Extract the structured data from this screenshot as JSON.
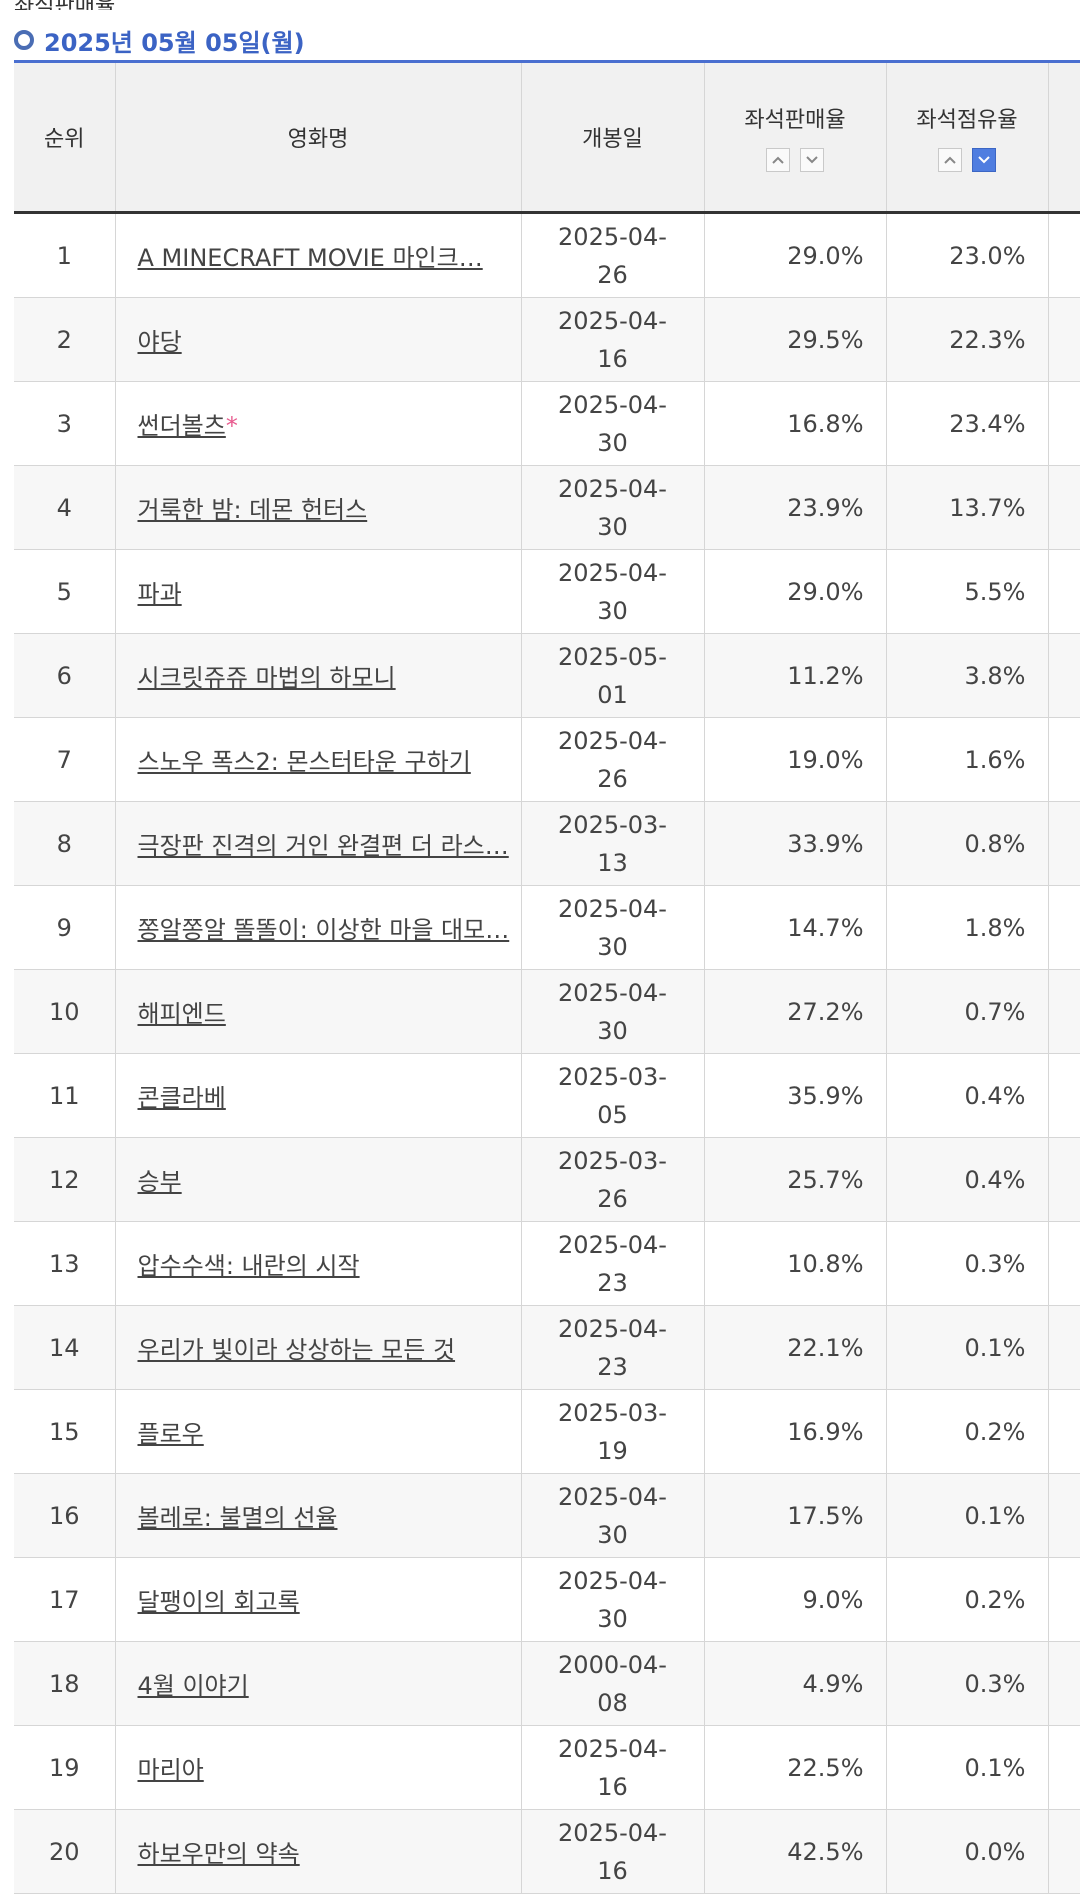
{
  "page_title": "좌석판매율",
  "date_label": "2025년 05월 05일(월)",
  "columns": {
    "rank": "순위",
    "title": "영화명",
    "release": "개봉일",
    "seat_sales": "좌석판매율",
    "seat_share": "좌석점유율"
  },
  "movies": [
    {
      "rank": "1",
      "title": "A MINECRAFT MOVIE 마인크…",
      "release": "2025-04-26",
      "seat_sales": "29.0%",
      "seat_share": "23.0%"
    },
    {
      "rank": "2",
      "title": "야당",
      "release": "2025-04-16",
      "seat_sales": "29.5%",
      "seat_share": "22.3%"
    },
    {
      "rank": "3",
      "title": "썬더볼츠",
      "release": "2025-04-30",
      "seat_sales": "16.8%",
      "seat_share": "23.4%"
    },
    {
      "rank": "4",
      "title": "거룩한 밤: 데몬 헌터스",
      "release": "2025-04-30",
      "seat_sales": "23.9%",
      "seat_share": "13.7%"
    },
    {
      "rank": "5",
      "title": "파과",
      "release": "2025-04-30",
      "seat_sales": "29.0%",
      "seat_share": "5.5%"
    },
    {
      "rank": "6",
      "title": "시크릿쥬쥬 마법의 하모니",
      "release": "2025-05-01",
      "seat_sales": "11.2%",
      "seat_share": "3.8%"
    },
    {
      "rank": "7",
      "title": "스노우 폭스2: 몬스터타운 구하기",
      "release": "2025-04-26",
      "seat_sales": "19.0%",
      "seat_share": "1.6%"
    },
    {
      "rank": "8",
      "title": "극장판 진격의 거인 완결편 더 라스…",
      "release": "2025-03-13",
      "seat_sales": "33.9%",
      "seat_share": "0.8%"
    },
    {
      "rank": "9",
      "title": "쫑알쫑알 똘똘이: 이상한 마을 대모…",
      "release": "2025-04-30",
      "seat_sales": "14.7%",
      "seat_share": "1.8%"
    },
    {
      "rank": "10",
      "title": "해피엔드",
      "release": "2025-04-30",
      "seat_sales": "27.2%",
      "seat_share": "0.7%"
    },
    {
      "rank": "11",
      "title": "콘클라베",
      "release": "2025-03-05",
      "seat_sales": "35.9%",
      "seat_share": "0.4%"
    },
    {
      "rank": "12",
      "title": "승부",
      "release": "2025-03-26",
      "seat_sales": "25.7%",
      "seat_share": "0.4%"
    },
    {
      "rank": "13",
      "title": "압수수색: 내란의 시작",
      "release": "2025-04-23",
      "seat_sales": "10.8%",
      "seat_share": "0.3%"
    },
    {
      "rank": "14",
      "title": "우리가 빛이라 상상하는 모든 것",
      "release": "2025-04-23",
      "seat_sales": "22.1%",
      "seat_share": "0.1%"
    },
    {
      "rank": "15",
      "title": "플로우",
      "release": "2025-03-19",
      "seat_sales": "16.9%",
      "seat_share": "0.2%"
    },
    {
      "rank": "16",
      "title": "볼레로: 불멸의 선율",
      "release": "2025-04-30",
      "seat_sales": "17.5%",
      "seat_share": "0.1%"
    },
    {
      "rank": "17",
      "title": "달팽이의 회고록",
      "release": "2025-04-30",
      "seat_sales": "9.0%",
      "seat_share": "0.2%"
    },
    {
      "rank": "18",
      "title": "4월 이야기",
      "release": "2000-04-08",
      "seat_sales": "4.9%",
      "seat_share": "0.3%"
    },
    {
      "rank": "19",
      "title": "마리아",
      "release": "2025-04-16",
      "seat_sales": "22.5%",
      "seat_share": "0.1%"
    },
    {
      "rank": "20",
      "title": "하보우만의 약속",
      "release": "2025-04-16",
      "seat_sales": "42.5%",
      "seat_share": "0.0%"
    }
  ],
  "marked_title_rank": "3",
  "mark_symbol": "*",
  "colors": {
    "accent": "#4a6fd0",
    "active_sort": "#4f7de0",
    "mark": "#e85a8e"
  }
}
